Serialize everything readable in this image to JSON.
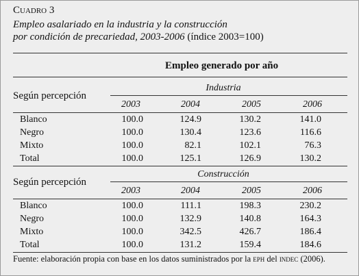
{
  "header": {
    "label": "Cuadro 3",
    "title_line1": "Empleo asalariado en la industria y la construcción",
    "title_line2": "por condición de precariedad, 2003-2006",
    "title_note": "(índice 2003=100)"
  },
  "table": {
    "group_header": "Empleo generado por año",
    "sections": [
      {
        "name": "Industria",
        "row_header": "Según percepción",
        "years": [
          "2003",
          "2004",
          "2005",
          "2006"
        ],
        "rows": [
          [
            "Blanco",
            "100.0",
            "124.9",
            "130.2",
            "141.0"
          ],
          [
            "Negro",
            "100.0",
            "130.4",
            "123.6",
            "116.6"
          ],
          [
            "Mixto",
            "100.0",
            "82.1",
            "102.1",
            "76.3"
          ],
          [
            "Total",
            "100.0",
            "125.1",
            "126.9",
            "130.2"
          ]
        ]
      },
      {
        "name": "Construcción",
        "row_header": "Según percepción",
        "years": [
          "2003",
          "2004",
          "2005",
          "2006"
        ],
        "rows": [
          [
            "Blanco",
            "100.0",
            "111.1",
            "198.3",
            "230.2"
          ],
          [
            "Negro",
            "100.0",
            "132.9",
            "140.8",
            "164.3"
          ],
          [
            "Mixto",
            "100.0",
            "342.5",
            "426.7",
            "186.4"
          ],
          [
            "Total",
            "100.0",
            "131.2",
            "159.4",
            "184.6"
          ]
        ]
      }
    ]
  },
  "source": [
    "Fuente: elaboración propia con base en los datos suministrados por la ",
    "eph",
    " del ",
    "indec",
    " (2006)."
  ]
}
